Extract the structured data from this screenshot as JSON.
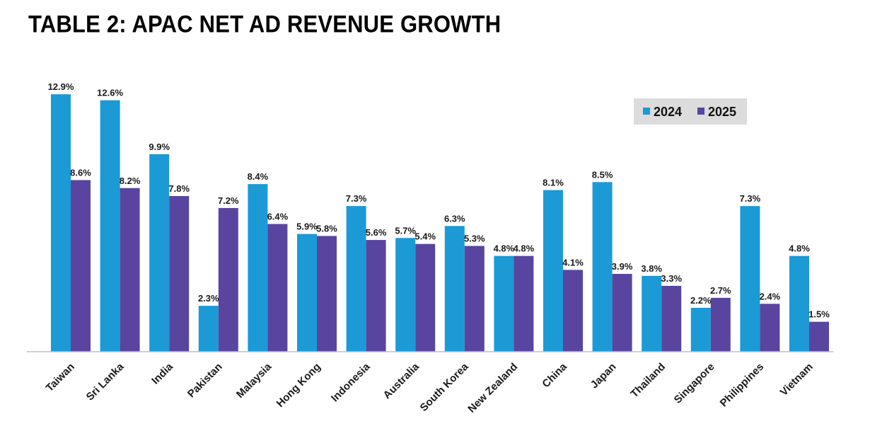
{
  "title": "TABLE 2: APAC NET AD REVENUE GROWTH",
  "colors": {
    "series_2024": "#1b9ad6",
    "series_2025": "#5945a0",
    "legend_bg": "#dcdcdc",
    "axis": "#bfbfbf"
  },
  "chart_data": {
    "type": "bar",
    "title": "TABLE 2: APAC NET AD REVENUE GROWTH",
    "xlabel": "",
    "ylabel": "",
    "ylim": [
      0,
      13
    ],
    "grid": false,
    "legend_position": "top-right",
    "categories": [
      "Taiwan",
      "Sri Lanka",
      "India",
      "Pakistan",
      "Malaysia",
      "Hong Kong",
      "Indonesia",
      "Australia",
      "South Korea",
      "New Zealand",
      "China",
      "Japan",
      "Thailand",
      "Singapore",
      "Philippines",
      "Vietnam"
    ],
    "series": [
      {
        "name": "2024",
        "values": [
          12.9,
          12.6,
          9.9,
          2.3,
          8.4,
          5.9,
          7.3,
          5.7,
          6.3,
          4.8,
          8.1,
          8.5,
          3.8,
          2.2,
          7.3,
          4.8
        ],
        "labels": [
          "12.9%",
          "12.6%",
          "9.9%",
          "2.3%",
          "8.4%",
          "5.9%",
          "7.3%",
          "5.7%",
          "6.3%",
          "4.8%",
          "8.1%",
          "8.5%",
          "3.8%",
          "2.2%",
          "7.3%",
          "4.8%"
        ]
      },
      {
        "name": "2025",
        "values": [
          8.6,
          8.2,
          7.8,
          7.2,
          6.4,
          5.8,
          5.6,
          5.4,
          5.3,
          4.8,
          4.1,
          3.9,
          3.3,
          2.7,
          2.4,
          1.5
        ],
        "labels": [
          "8.6%",
          "8.2%",
          "7.8%",
          "7.2%",
          "6.4%",
          "5.8%",
          "5.6%",
          "5.4%",
          "5.3%",
          "4.8%",
          "4.1%",
          "3.9%",
          "3.3%",
          "2.7%",
          "2.4%",
          "1.5%"
        ]
      }
    ]
  }
}
